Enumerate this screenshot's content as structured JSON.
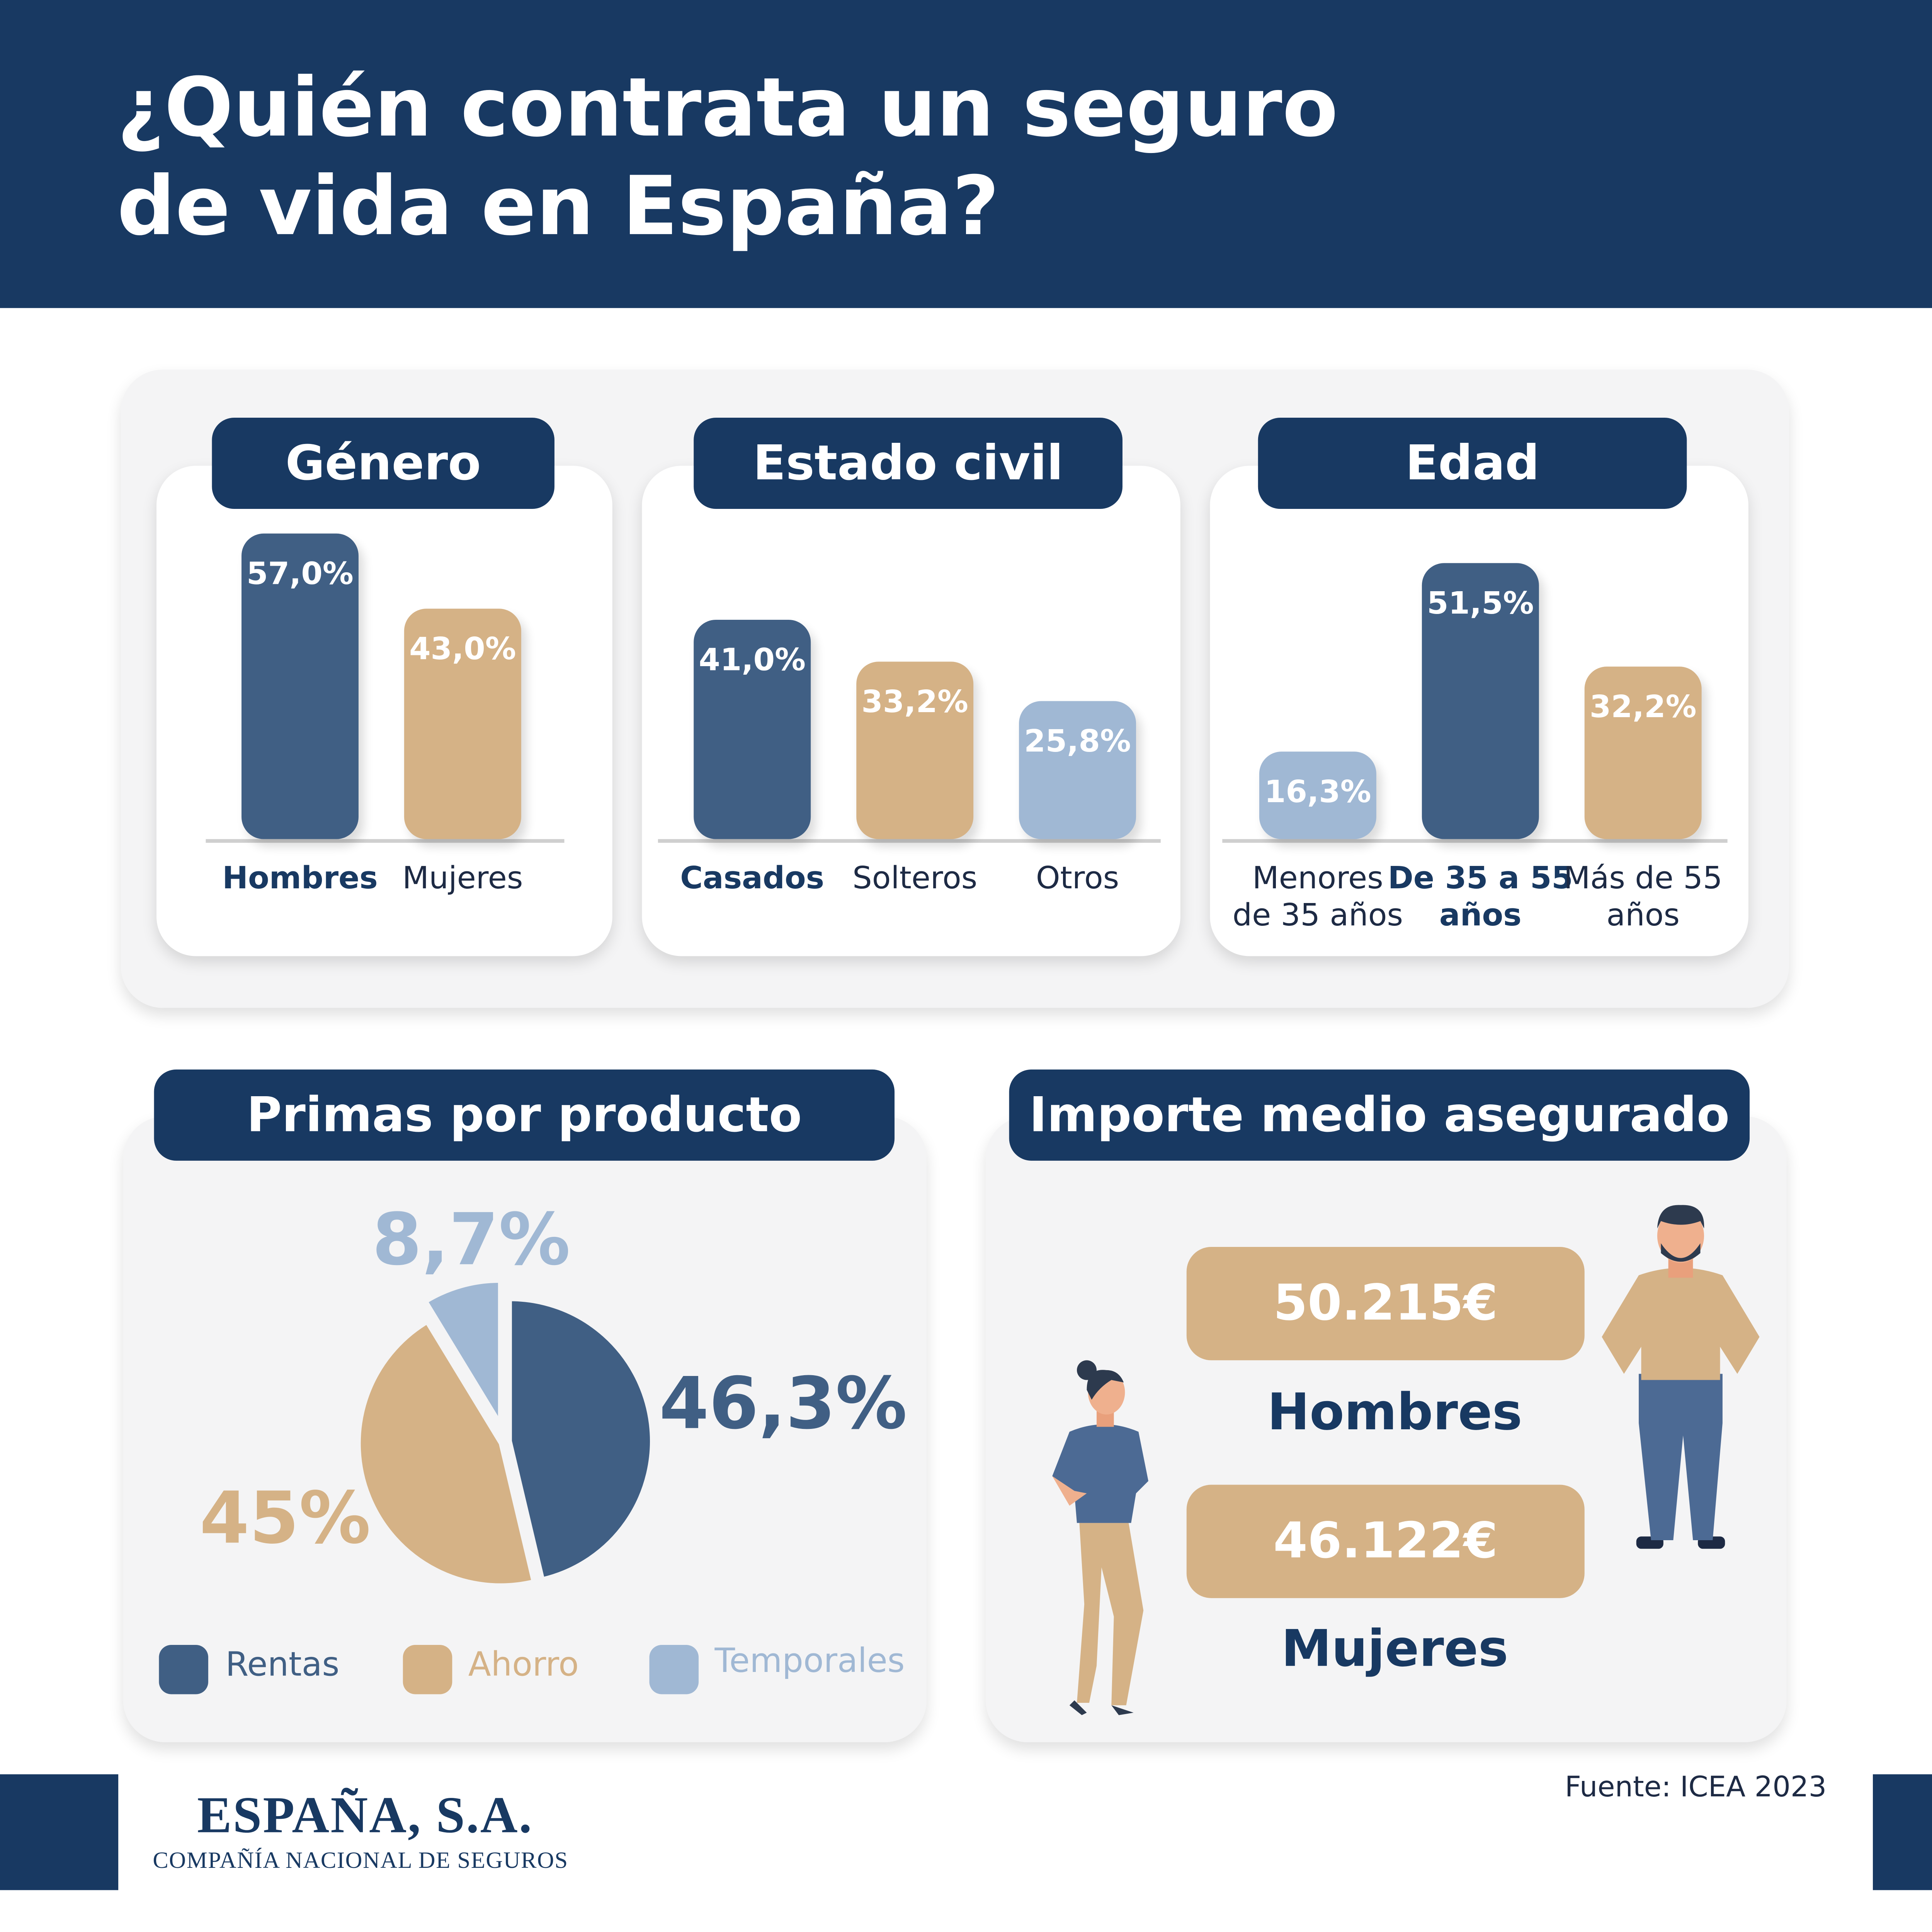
{
  "title": "¿Quién contrata un seguro\nde vida en España?",
  "colors": {
    "navy": "#183962",
    "dark_blue": "#405f84",
    "tan": "#d5b286",
    "light_blue": "#a0b8d4"
  },
  "chart_data": [
    {
      "type": "bar",
      "title": "Género",
      "categories": [
        "Hombres",
        "Mujeres"
      ],
      "values": [
        57.0,
        43.0
      ],
      "value_labels": [
        "57,0%",
        "43,0%"
      ],
      "bar_colors": [
        "#405f84",
        "#d5b286"
      ],
      "highlight_index": 0
    },
    {
      "type": "bar",
      "title": "Estado civil",
      "categories": [
        "Casados",
        "Solteros",
        "Otros"
      ],
      "values": [
        41.0,
        33.2,
        25.8
      ],
      "value_labels": [
        "41,0%",
        "33,2%",
        "25,8%"
      ],
      "bar_colors": [
        "#405f84",
        "#d5b286",
        "#a0b8d4"
      ],
      "highlight_index": 0
    },
    {
      "type": "bar",
      "title": "Edad",
      "categories": [
        "Menores\nde 35 años",
        "De 35 a 55\naños",
        "Más de 55\naños"
      ],
      "values": [
        16.3,
        51.5,
        32.2
      ],
      "value_labels": [
        "16,3%",
        "51,5%",
        "32,2%"
      ],
      "bar_colors": [
        "#a0b8d4",
        "#405f84",
        "#d5b286"
      ],
      "highlight_index": 1
    },
    {
      "type": "pie",
      "title": "Primas por producto",
      "slices": [
        {
          "name": "Rentas",
          "value": 46.3,
          "label": "46,3%",
          "color": "#405f84"
        },
        {
          "name": "Ahorro",
          "value": 45.0,
          "label": "45%",
          "color": "#d5b286"
        },
        {
          "name": "Temporales",
          "value": 8.7,
          "label": "8,7%",
          "color": "#a0b8d4"
        }
      ],
      "legend": "bottom",
      "exploded": "Temporales"
    }
  ],
  "importe": {
    "title": "Importe medio asegurado",
    "hombres": {
      "amount": "50.215€",
      "label": "Hombres"
    },
    "mujeres": {
      "amount": "46.122€",
      "label": "Mujeres"
    }
  },
  "footer": {
    "brand": "ESPAÑA, S.A.",
    "tagline": "COMPAÑÍA NACIONAL DE SEGUROS",
    "source": "Fuente: ICEA 2023"
  }
}
